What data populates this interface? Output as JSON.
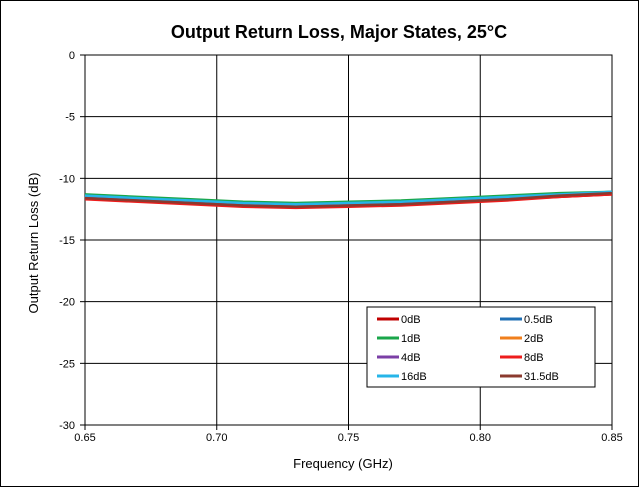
{
  "chart_data": {
    "type": "line",
    "title": "Output Return Loss, Major States, 25°C",
    "xlabel": "Frequency (GHz)",
    "ylabel": "Output Return Loss (dB)",
    "xlim": [
      0.65,
      0.85
    ],
    "ylim": [
      -30,
      0
    ],
    "xticks": [
      0.65,
      0.7,
      0.75,
      0.8,
      0.85
    ],
    "xtick_labels": [
      "0.65",
      "0.70",
      "0.75",
      "0.80",
      "0.85"
    ],
    "yticks": [
      0,
      -5,
      -10,
      -15,
      -20,
      -25,
      -30
    ],
    "ytick_labels": [
      "0",
      "-5",
      "-10",
      "-15",
      "-20",
      "-25",
      "-30"
    ],
    "grid": true,
    "legend_position": "lower-right",
    "x": [
      0.65,
      0.67,
      0.69,
      0.71,
      0.73,
      0.75,
      0.77,
      0.79,
      0.81,
      0.83,
      0.85
    ],
    "series": [
      {
        "name": "0dB",
        "color": "#c00000",
        "values": [
          -11.6,
          -11.8,
          -12.0,
          -12.2,
          -12.3,
          -12.2,
          -12.1,
          -11.9,
          -11.7,
          -11.5,
          -11.3
        ]
      },
      {
        "name": "0.5dB",
        "color": "#1f6fb4",
        "values": [
          -11.4,
          -11.6,
          -11.8,
          -12.0,
          -12.1,
          -12.0,
          -11.9,
          -11.7,
          -11.5,
          -11.3,
          -11.1
        ]
      },
      {
        "name": "1dB",
        "color": "#1aa64a",
        "values": [
          -11.3,
          -11.5,
          -11.7,
          -11.9,
          -12.0,
          -11.9,
          -11.8,
          -11.6,
          -11.4,
          -11.2,
          -11.1
        ]
      },
      {
        "name": "2dB",
        "color": "#f07f1d",
        "values": [
          -11.5,
          -11.7,
          -11.9,
          -12.1,
          -12.2,
          -12.1,
          -12.0,
          -11.8,
          -11.6,
          -11.4,
          -11.2
        ]
      },
      {
        "name": "4dB",
        "color": "#7b3fa6",
        "values": [
          -11.5,
          -11.7,
          -11.9,
          -12.1,
          -12.2,
          -12.1,
          -12.0,
          -11.8,
          -11.6,
          -11.4,
          -11.2
        ]
      },
      {
        "name": "8dB",
        "color": "#ee1c1c",
        "values": [
          -11.7,
          -11.9,
          -12.1,
          -12.3,
          -12.4,
          -12.3,
          -12.2,
          -12.0,
          -11.8,
          -11.5,
          -11.3
        ]
      },
      {
        "name": "16dB",
        "color": "#26b5e8",
        "values": [
          -11.4,
          -11.6,
          -11.8,
          -12.0,
          -12.1,
          -12.0,
          -11.9,
          -11.7,
          -11.5,
          -11.3,
          -11.1
        ]
      },
      {
        "name": "31.5dB",
        "color": "#8b3a2e",
        "values": [
          -11.6,
          -11.8,
          -12.0,
          -12.2,
          -12.3,
          -12.2,
          -12.1,
          -11.9,
          -11.7,
          -11.4,
          -11.2
        ]
      }
    ]
  }
}
